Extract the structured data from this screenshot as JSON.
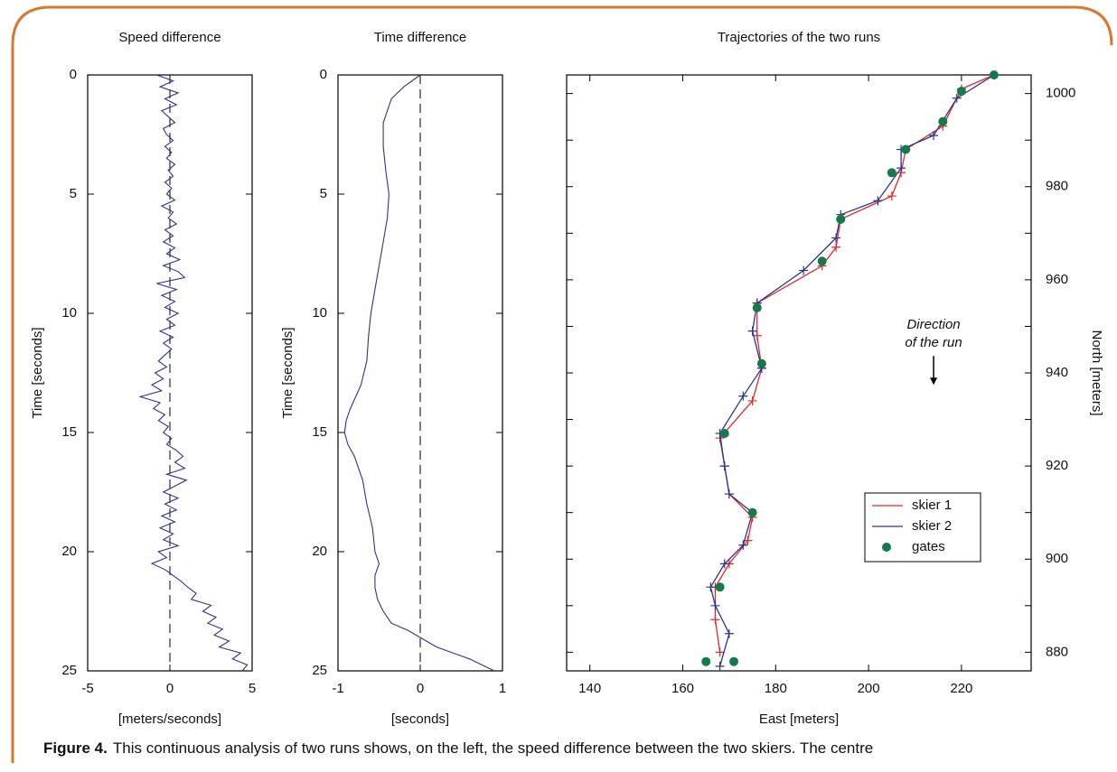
{
  "chart_data": [
    {
      "type": "line",
      "title": "Speed difference",
      "xlabel": "[meters/seconds]",
      "ylabel": "Time [seconds]",
      "color": "#2a3590",
      "xlim": [
        -5,
        5
      ],
      "xticks": [
        -5,
        0,
        5
      ],
      "ylim": [
        0,
        25
      ],
      "yticks": [
        0,
        5,
        10,
        15,
        20,
        25
      ],
      "y_inverted": true,
      "x_refline": 0,
      "time": [
        0,
        0.25,
        0.5,
        0.75,
        1,
        1.25,
        1.5,
        1.75,
        2,
        2.25,
        2.5,
        2.75,
        3,
        3.25,
        3.5,
        3.75,
        4,
        4.25,
        4.5,
        4.75,
        5,
        5.25,
        5.5,
        5.75,
        6,
        6.25,
        6.5,
        6.75,
        7,
        7.25,
        7.5,
        7.75,
        8,
        8.25,
        8.5,
        8.75,
        9,
        9.25,
        9.5,
        9.75,
        10,
        10.25,
        10.5,
        10.75,
        11,
        11.25,
        11.5,
        11.75,
        12,
        12.25,
        12.5,
        12.75,
        13,
        13.25,
        13.5,
        13.75,
        14,
        14.25,
        14.5,
        14.75,
        15,
        15.25,
        15.5,
        15.75,
        16,
        16.25,
        16.5,
        16.75,
        17,
        17.25,
        17.5,
        17.75,
        18,
        18.25,
        18.5,
        18.75,
        19,
        19.25,
        19.5,
        19.75,
        20,
        20.25,
        20.5,
        20.75,
        21,
        21.25,
        21.5,
        21.75,
        22,
        22.25,
        22.5,
        22.75,
        23,
        23.25,
        23.5,
        23.75,
        24,
        24.25,
        24.5,
        24.75,
        25
      ],
      "values": [
        -0.8,
        0.2,
        -0.6,
        0.5,
        -0.3,
        0.4,
        -0.5,
        -0.1,
        0.3,
        -0.4,
        -0.2,
        0.2,
        -0.3,
        0.1,
        -0.2,
        0.3,
        -0.1,
        0.2,
        -0.3,
        0.1,
        -0.2,
        0.3,
        -0.5,
        0.2,
        -0.1,
        0.4,
        -0.3,
        0.2,
        -0.4,
        0.3,
        -0.2,
        0.6,
        -0.4,
        0.5,
        0.9,
        -0.8,
        0.4,
        -0.5,
        0.3,
        -0.3,
        0.5,
        -0.2,
        0.3,
        -0.6,
        0.2,
        -0.4,
        0.1,
        -0.3,
        -0.7,
        -0.2,
        -0.9,
        -0.4,
        -1.1,
        -0.5,
        -1.8,
        -0.6,
        -1.0,
        -0.3,
        -0.7,
        -0.1,
        -0.4,
        0.1,
        -0.2,
        0.4,
        0.8,
        0.3,
        0.9,
        -0.2,
        1.0,
        0.3,
        -0.4,
        0.5,
        -0.3,
        0.4,
        -0.5,
        0.3,
        -0.6,
        0.2,
        -0.4,
        0.5,
        -0.7,
        -0.2,
        -1.1,
        -0.3,
        0.2,
        0.7,
        1.1,
        1.6,
        1.3,
        2.5,
        2.0,
        2.8,
        2.3,
        3.2,
        2.7,
        3.6,
        3.0,
        4.3,
        3.8,
        4.7,
        4.4
      ]
    },
    {
      "type": "line",
      "title": "Time difference",
      "xlabel": "[seconds]",
      "ylabel": "Time [seconds]",
      "color": "#2a3590",
      "xlim": [
        -1,
        1
      ],
      "xticks": [
        -1,
        0,
        1
      ],
      "ylim": [
        0,
        25
      ],
      "yticks": [
        0,
        5,
        10,
        15,
        20,
        25
      ],
      "y_inverted": true,
      "x_refline": 0,
      "time": [
        0,
        0.5,
        1,
        1.5,
        2,
        3,
        4,
        5,
        6,
        7,
        8,
        9,
        10,
        11,
        12,
        13,
        14,
        14.5,
        15,
        15.5,
        16,
        17,
        18,
        19,
        20,
        20.5,
        21,
        21.5,
        22,
        22.5,
        23,
        23.3,
        23.6,
        24,
        24.5,
        25
      ],
      "values": [
        0,
        -0.2,
        -0.35,
        -0.4,
        -0.45,
        -0.45,
        -0.42,
        -0.38,
        -0.4,
        -0.45,
        -0.5,
        -0.55,
        -0.6,
        -0.63,
        -0.65,
        -0.72,
        -0.85,
        -0.9,
        -0.92,
        -0.88,
        -0.8,
        -0.7,
        -0.65,
        -0.58,
        -0.55,
        -0.5,
        -0.55,
        -0.55,
        -0.52,
        -0.45,
        -0.35,
        -0.15,
        0,
        0.2,
        0.6,
        0.9
      ]
    },
    {
      "type": "trajectory",
      "title": "Trajectories of the two runs",
      "xlabel": "East [meters]",
      "ylabel": "North [meters]",
      "xlim": [
        135,
        235
      ],
      "xticks": [
        140,
        160,
        180,
        200,
        220
      ],
      "ylim": [
        876,
        1004
      ],
      "yticks": [
        880,
        900,
        920,
        940,
        960,
        980,
        1000
      ],
      "yminor": [
        890,
        910,
        930,
        950,
        970,
        990
      ],
      "y_axis_side": "right",
      "legend": "lower-right",
      "annotation": [
        "Direction",
        "of the run"
      ],
      "series": [
        {
          "name": "skier 1",
          "color": "#e8262a",
          "marker": "+",
          "x": [
            227,
            220,
            216,
            208,
            207,
            205,
            194,
            193,
            190,
            176,
            176,
            177,
            175,
            168,
            169,
            170,
            175,
            174,
            170,
            167,
            167,
            168
          ],
          "values": [
            1004,
            1001,
            993,
            988,
            983,
            978,
            973,
            967,
            963,
            955,
            948,
            941,
            934,
            926,
            920,
            914,
            909,
            904,
            899,
            894,
            887,
            880
          ]
        },
        {
          "name": "skier 2",
          "color": "#2a3590",
          "marker": "+",
          "x": [
            227,
            219,
            214,
            207,
            207,
            202,
            194,
            193,
            186,
            176,
            175,
            177,
            173,
            168,
            169,
            170,
            175,
            173,
            169,
            166,
            167,
            170,
            168
          ],
          "values": [
            1004,
            999,
            991,
            988,
            984,
            977,
            974,
            969,
            962,
            955,
            949,
            941,
            935,
            927,
            920,
            914,
            910,
            903,
            899,
            894,
            890,
            884,
            877
          ]
        },
        {
          "name": "gates",
          "color": "#157a4a",
          "marker": "dot",
          "x": [
            227,
            220,
            216,
            208,
            205,
            194,
            190,
            176,
            177,
            169,
            175,
            168,
            165,
            171
          ],
          "values": [
            1004,
            1000.5,
            994,
            988,
            983,
            973,
            964,
            954,
            942,
            927,
            910,
            894,
            878,
            878
          ]
        }
      ]
    }
  ],
  "caption": {
    "label": "Figure 4.",
    "text": "This continuous analysis of two runs shows, on the left, the speed difference between the two skiers. The centre"
  }
}
